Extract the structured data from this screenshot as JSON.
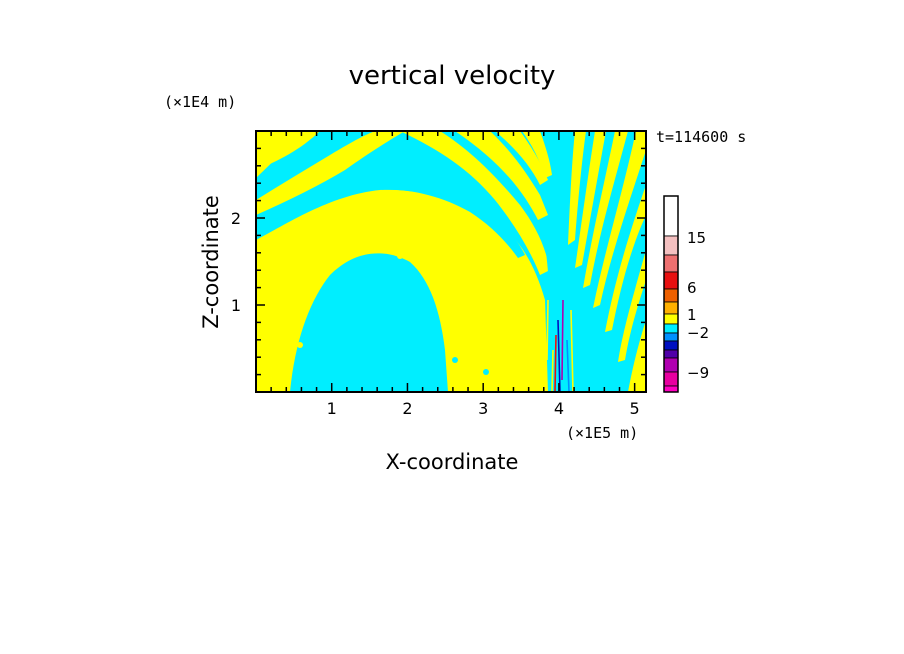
{
  "chart_data": {
    "type": "heatmap",
    "title": "vertical velocity",
    "xlabel": "X-coordinate",
    "ylabel": "Z-coordinate",
    "x_unit": "(×1E5 m)",
    "y_unit": "(×1E4 m)",
    "time_label": "t=114600 s",
    "xlim": [
      0,
      5.15
    ],
    "ylim": [
      0,
      3.0
    ],
    "xticks": [
      "1",
      "2",
      "3",
      "4",
      "5"
    ],
    "xtick_values": [
      1,
      2,
      3,
      4,
      5
    ],
    "yticks": [
      "1",
      "2"
    ],
    "ytick_values": [
      1,
      2
    ],
    "dominant_colors": {
      "positive": "#ffff00",
      "negative": "#00eeff"
    },
    "colorbar": {
      "labels": [
        "15",
        "6",
        "1",
        "−2",
        "−9"
      ],
      "colors": [
        "#ffffff",
        "#f4c0c0",
        "#ee7070",
        "#e81010",
        "#ee6000",
        "#ffb000",
        "#ffff00",
        "#00eeff",
        "#0090ff",
        "#0010c0",
        "#5000a8",
        "#b000b0",
        "#e800a0",
        "#ff00c0"
      ]
    }
  }
}
